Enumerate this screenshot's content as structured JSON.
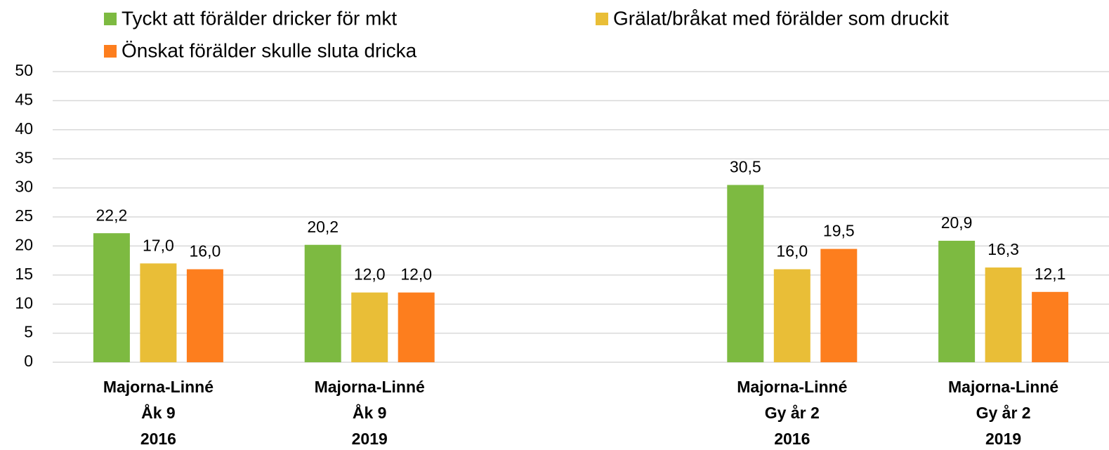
{
  "chart_data": {
    "type": "bar",
    "categories": [
      "Majorna-Linné\nÅk 9\n2016",
      "Majorna-Linné\nÅk 9\n2019",
      null,
      "Majorna-Linné\nGy år 2\n2016",
      "Majorna-Linné\nGy år 2\n2019"
    ],
    "series": [
      {
        "name": "Tyckt att förälder dricker för mkt",
        "color": "#7dba41",
        "values": [
          22.2,
          20.2,
          null,
          30.5,
          20.9
        ],
        "value_labels": [
          "22,2",
          "20,2",
          null,
          "30,5",
          "20,9"
        ]
      },
      {
        "name": "Grälat/bråkat med förälder som druckit",
        "color": "#e9be37",
        "values": [
          17.0,
          12.0,
          null,
          16.0,
          16.3
        ],
        "value_labels": [
          "17,0",
          "12,0",
          null,
          "16,0",
          "16,3"
        ]
      },
      {
        "name": "Önskat förälder skulle sluta dricka",
        "color": "#fd7e1e",
        "values": [
          16.0,
          12.0,
          null,
          19.5,
          12.1
        ],
        "value_labels": [
          "16,0",
          "12,0",
          null,
          "19,5",
          "12,1"
        ]
      }
    ],
    "ylim": [
      0,
      50
    ],
    "yticks": [
      0,
      5,
      10,
      15,
      20,
      25,
      30,
      35,
      40,
      45,
      50
    ],
    "grid": true,
    "legend": "top"
  }
}
